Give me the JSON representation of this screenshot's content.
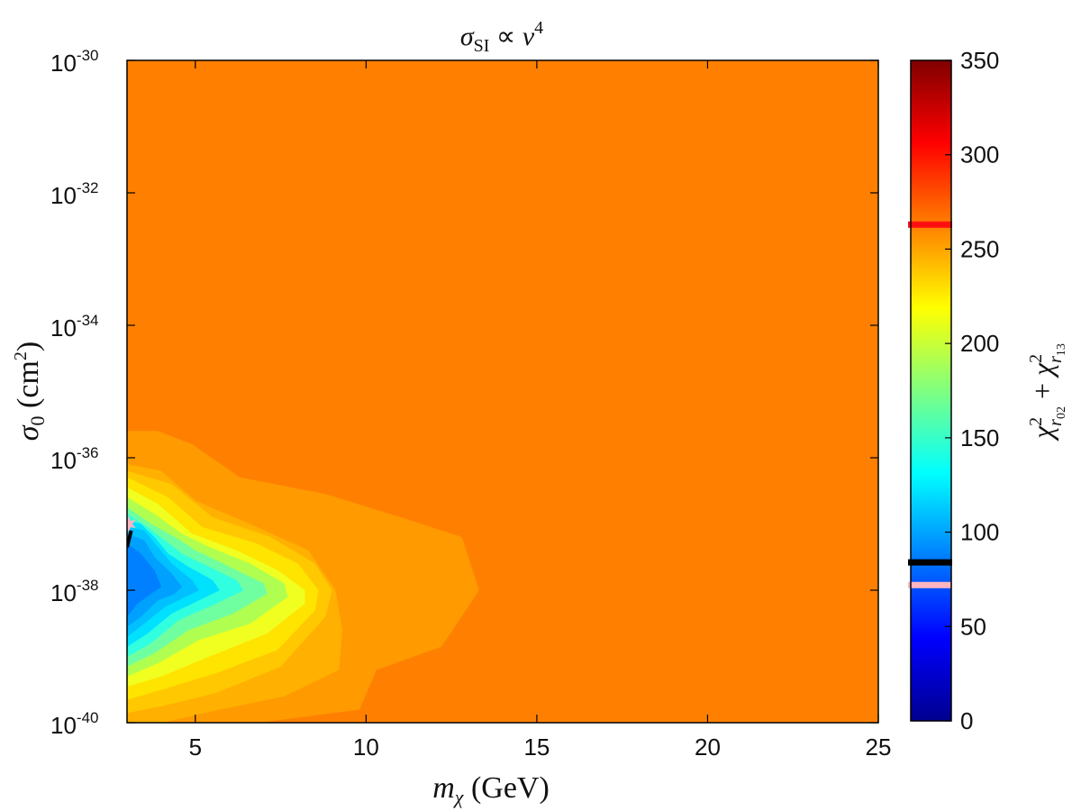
{
  "chart_data": {
    "type": "heatmap",
    "title": {
      "sigma": "σ",
      "subscript": "SI",
      "relation": " ∝ ",
      "v": "v",
      "power": "4"
    },
    "xlabel": {
      "symbol": "m",
      "subscript": "χ",
      "unit": " (GeV)"
    },
    "ylabel": {
      "symbol": "σ",
      "subscript": "0",
      "unit_open": " (cm",
      "unit_power": "2",
      "unit_close": ")"
    },
    "colorbar_label": {
      "chi1": "χ",
      "pow1": "2",
      "sub1": "r",
      "subsub1": "02",
      "plus": " + ",
      "chi2": "χ",
      "pow2": "2",
      "sub2": "r",
      "subsub2": "13"
    },
    "x_range": [
      3,
      25
    ],
    "x_ticks": [
      {
        "value": 5,
        "label": "5"
      },
      {
        "value": 10,
        "label": "10"
      },
      {
        "value": 15,
        "label": "15"
      },
      {
        "value": 20,
        "label": "20"
      },
      {
        "value": 25,
        "label": "25"
      }
    ],
    "y_scale": "log",
    "y_range": [
      1e-40,
      1e-30
    ],
    "y_ticks": [
      {
        "exponent": -40,
        "base": "10",
        "power": "-40"
      },
      {
        "exponent": -38,
        "base": "10",
        "power": "-38"
      },
      {
        "exponent": -36,
        "base": "10",
        "power": "-36"
      },
      {
        "exponent": -34,
        "base": "10",
        "power": "-34"
      },
      {
        "exponent": -32,
        "base": "10",
        "power": "-32"
      },
      {
        "exponent": -30,
        "base": "10",
        "power": "-30"
      }
    ],
    "colorbar_range": [
      0,
      350
    ],
    "colorbar_ticks": [
      {
        "value": 0,
        "label": "0"
      },
      {
        "value": 50,
        "label": "50"
      },
      {
        "value": 100,
        "label": "100"
      },
      {
        "value": 150,
        "label": "150"
      },
      {
        "value": 200,
        "label": "200"
      },
      {
        "value": 250,
        "label": "250"
      },
      {
        "value": 300,
        "label": "300"
      },
      {
        "value": 350,
        "label": "350"
      }
    ],
    "colorbar_markers": [
      {
        "value": 263,
        "color": "#ff1010"
      },
      {
        "value": 84,
        "color": "#000000"
      },
      {
        "value": 72,
        "color": "#ffb6c1"
      }
    ],
    "colormap": [
      "#00008f",
      "#0000ff",
      "#0080ff",
      "#00ffff",
      "#80ff80",
      "#ffff00",
      "#ff8000",
      "#ff0000",
      "#800000"
    ],
    "contour_regions": [
      {
        "level": 257,
        "color": "#ff8000",
        "points": [
          [
            3,
            -40
          ],
          [
            25,
            -40
          ],
          [
            25,
            -30
          ],
          [
            3,
            -30
          ]
        ]
      },
      {
        "level": 250,
        "color": "#ff9a00",
        "points": [
          [
            3,
            -40
          ],
          [
            6.8,
            -40
          ],
          [
            9.8,
            -39.8
          ],
          [
            10.3,
            -39.2
          ],
          [
            12.2,
            -38.85
          ],
          [
            13.3,
            -38.0
          ],
          [
            12.8,
            -37.2
          ],
          [
            11.0,
            -36.9
          ],
          [
            8.8,
            -36.55
          ],
          [
            6.3,
            -36.3
          ],
          [
            4.9,
            -35.8
          ],
          [
            3.9,
            -35.6
          ],
          [
            3,
            -35.6
          ]
        ]
      },
      {
        "level": 240,
        "color": "#ffb000",
        "points": [
          [
            3,
            -40
          ],
          [
            4.0,
            -40
          ],
          [
            5.7,
            -39.8
          ],
          [
            7.6,
            -39.6
          ],
          [
            9.2,
            -39.2
          ],
          [
            9.3,
            -38.6
          ],
          [
            9.1,
            -38.0
          ],
          [
            8.3,
            -37.4
          ],
          [
            6.8,
            -37.05
          ],
          [
            5.0,
            -36.65
          ],
          [
            4.0,
            -36.2
          ],
          [
            3,
            -36.1
          ]
        ]
      },
      {
        "level": 225,
        "color": "#ffc800",
        "points": [
          [
            3,
            -39.85
          ],
          [
            4.0,
            -39.75
          ],
          [
            5.6,
            -39.55
          ],
          [
            7.5,
            -39.15
          ],
          [
            8.8,
            -38.4
          ],
          [
            9.0,
            -38.0
          ],
          [
            8.5,
            -37.6
          ],
          [
            7.2,
            -37.2
          ],
          [
            5.5,
            -36.9
          ],
          [
            4.3,
            -36.4
          ],
          [
            3,
            -36.2
          ]
        ]
      },
      {
        "level": 210,
        "color": "#ffe400",
        "points": [
          [
            3,
            -39.65
          ],
          [
            4.0,
            -39.5
          ],
          [
            5.6,
            -39.25
          ],
          [
            7.4,
            -38.9
          ],
          [
            8.5,
            -38.3
          ],
          [
            8.6,
            -38.0
          ],
          [
            8.0,
            -37.6
          ],
          [
            6.8,
            -37.3
          ],
          [
            5.2,
            -37.05
          ],
          [
            4.2,
            -36.6
          ],
          [
            3,
            -36.3
          ]
        ]
      },
      {
        "level": 195,
        "color": "#f0ff20",
        "points": [
          [
            3,
            -39.45
          ],
          [
            4.0,
            -39.3
          ],
          [
            5.4,
            -39.0
          ],
          [
            7.1,
            -38.65
          ],
          [
            8.2,
            -38.2
          ],
          [
            8.2,
            -38.0
          ],
          [
            7.4,
            -37.7
          ],
          [
            6.2,
            -37.4
          ],
          [
            4.9,
            -37.15
          ],
          [
            3.9,
            -36.7
          ],
          [
            3,
            -36.45
          ]
        ]
      },
      {
        "level": 180,
        "color": "#b0ff50",
        "points": [
          [
            3,
            -39.3
          ],
          [
            3.9,
            -39.1
          ],
          [
            5.1,
            -38.75
          ],
          [
            6.6,
            -38.5
          ],
          [
            7.7,
            -38.1
          ],
          [
            7.6,
            -37.9
          ],
          [
            6.6,
            -37.6
          ],
          [
            5.4,
            -37.35
          ],
          [
            4.6,
            -37.15
          ],
          [
            3.8,
            -36.85
          ],
          [
            3,
            -36.6
          ]
        ]
      },
      {
        "level": 165,
        "color": "#70ffa0",
        "points": [
          [
            3,
            -39.15
          ],
          [
            3.8,
            -38.95
          ],
          [
            4.8,
            -38.6
          ],
          [
            6.1,
            -38.35
          ],
          [
            7.1,
            -38.05
          ],
          [
            7.0,
            -37.9
          ],
          [
            6.0,
            -37.65
          ],
          [
            5.0,
            -37.4
          ],
          [
            4.4,
            -37.2
          ],
          [
            3.7,
            -37.0
          ],
          [
            3,
            -36.75
          ]
        ]
      },
      {
        "level": 150,
        "color": "#30ffe0",
        "points": [
          [
            3,
            -39.0
          ],
          [
            3.7,
            -38.8
          ],
          [
            4.5,
            -38.45
          ],
          [
            5.6,
            -38.2
          ],
          [
            6.4,
            -38.0
          ],
          [
            6.2,
            -37.85
          ],
          [
            5.4,
            -37.65
          ],
          [
            4.6,
            -37.45
          ],
          [
            4.1,
            -37.25
          ],
          [
            3.6,
            -37.05
          ],
          [
            3,
            -36.85
          ]
        ]
      },
      {
        "level": 135,
        "color": "#00e0ff",
        "points": [
          [
            3,
            -38.85
          ],
          [
            3.6,
            -38.65
          ],
          [
            4.3,
            -38.35
          ],
          [
            5.1,
            -38.15
          ],
          [
            5.7,
            -38.0
          ],
          [
            5.5,
            -37.85
          ],
          [
            4.8,
            -37.65
          ],
          [
            4.2,
            -37.45
          ],
          [
            3.8,
            -37.2
          ],
          [
            3.4,
            -37.0
          ],
          [
            3,
            -36.95
          ]
        ]
      },
      {
        "level": 120,
        "color": "#00c0ff",
        "points": [
          [
            3,
            -38.7
          ],
          [
            3.5,
            -38.5
          ],
          [
            4.1,
            -38.25
          ],
          [
            4.7,
            -38.1
          ],
          [
            5.1,
            -38.0
          ],
          [
            4.9,
            -37.85
          ],
          [
            4.3,
            -37.6
          ],
          [
            3.9,
            -37.35
          ],
          [
            3.5,
            -37.1
          ],
          [
            3,
            -37.05
          ]
        ]
      },
      {
        "level": 105,
        "color": "#00a0ff",
        "points": [
          [
            3,
            -38.55
          ],
          [
            3.4,
            -38.4
          ],
          [
            3.9,
            -38.15
          ],
          [
            4.4,
            -38.05
          ],
          [
            4.6,
            -37.95
          ],
          [
            4.3,
            -37.75
          ],
          [
            3.8,
            -37.5
          ],
          [
            3.5,
            -37.25
          ],
          [
            3,
            -37.15
          ]
        ]
      },
      {
        "level": 90,
        "color": "#0080ff",
        "points": [
          [
            3,
            -38.4
          ],
          [
            3.3,
            -38.2
          ],
          [
            3.7,
            -38.05
          ],
          [
            4.0,
            -37.95
          ],
          [
            3.8,
            -37.7
          ],
          [
            3.4,
            -37.45
          ],
          [
            3,
            -37.3
          ]
        ]
      }
    ],
    "markers": [
      {
        "type": "star",
        "x": 3.05,
        "y": -37.0,
        "color": "#ffb6c1"
      },
      {
        "type": "line",
        "x": [
          3.0,
          3.12
        ],
        "y": [
          -37.35,
          -37.1
        ],
        "color": "#000000"
      }
    ]
  }
}
